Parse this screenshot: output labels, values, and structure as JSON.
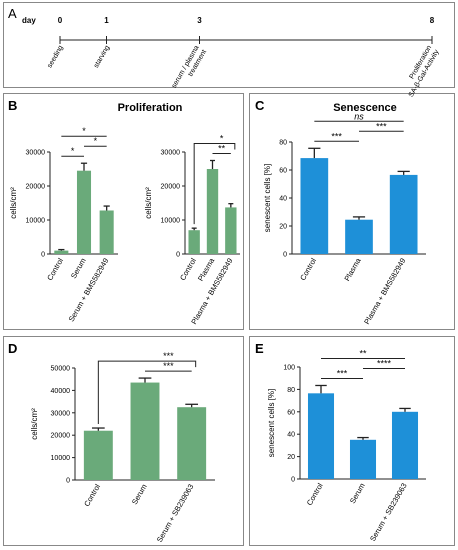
{
  "panel_letters": {
    "a": "A",
    "b": "B",
    "c": "C",
    "d": "D",
    "e": "E"
  },
  "timeline": {
    "day_label": "day",
    "days": [
      0,
      1,
      3,
      8
    ],
    "events": [
      {
        "day": 0,
        "lines": [
          "seeding"
        ]
      },
      {
        "day": 1,
        "lines": [
          "starving"
        ]
      },
      {
        "day": 3,
        "lines": [
          "serum / plasma",
          "treatment"
        ]
      },
      {
        "day": 8,
        "lines": [
          "Proliferation",
          "SA-β-Gal-Activity"
        ]
      }
    ]
  },
  "colors": {
    "green": "#6aaa7a",
    "blue": "#1e90d8",
    "error": "#222222",
    "frame": "#888888"
  },
  "titles": {
    "b": "Proliferation",
    "c": "Senescence"
  },
  "chart_data": [
    {
      "id": "b1",
      "type": "bar",
      "categories": [
        "Control",
        "Serum",
        "Serum + BMS582949"
      ],
      "values": [
        1000,
        24500,
        12800
      ],
      "errors": [
        300,
        2200,
        1300
      ],
      "ylabel": "cells/cm²",
      "ylim": [
        0,
        30000
      ],
      "yticks": [
        0,
        10000,
        20000,
        30000
      ],
      "color": "green",
      "sig": [
        {
          "from": 0,
          "to": 2,
          "label": "*"
        },
        {
          "from": 0,
          "to": 1,
          "label": "*"
        },
        {
          "from": 1,
          "to": 2,
          "label": "*"
        }
      ]
    },
    {
      "id": "b2",
      "type": "bar",
      "categories": [
        "Control",
        "Plasma",
        "Plasma + BMS582949"
      ],
      "values": [
        7000,
        25000,
        13700
      ],
      "errors": [
        600,
        2500,
        1100
      ],
      "ylabel": "cells/cm²",
      "ylim": [
        0,
        30000
      ],
      "yticks": [
        0,
        10000,
        20000,
        30000
      ],
      "color": "green",
      "sig": [
        {
          "from": 0,
          "to": 2,
          "label": "*",
          "bracket": "fork"
        },
        {
          "from": 1,
          "to": 2,
          "label": "**"
        }
      ]
    },
    {
      "id": "c",
      "type": "bar",
      "categories": [
        "Control",
        "Plasma",
        "Plasma + BMS582949"
      ],
      "values": [
        68.5,
        24.5,
        56.5
      ],
      "errors": [
        7,
        2,
        2.5
      ],
      "ylabel": "senescent cells [%]",
      "ylim": [
        0,
        80
      ],
      "yticks": [
        0,
        20,
        40,
        60,
        80
      ],
      "color": "blue",
      "sig": [
        {
          "from": 0,
          "to": 2,
          "label": "ns",
          "italic": true
        },
        {
          "from": 0,
          "to": 1,
          "label": "***"
        },
        {
          "from": 1,
          "to": 2,
          "label": "***"
        }
      ]
    },
    {
      "id": "d",
      "type": "bar",
      "categories": [
        "Control",
        "Serum",
        "Serum + SB239063"
      ],
      "values": [
        22000,
        43500,
        32500
      ],
      "errors": [
        1200,
        2000,
        1300
      ],
      "ylabel": "cells/cm²",
      "ylim": [
        0,
        50000
      ],
      "yticks": [
        0,
        10000,
        20000,
        30000,
        40000,
        50000
      ],
      "color": "green",
      "sig": [
        {
          "from": 0,
          "to": 2,
          "label": "***",
          "bracket": "fork"
        },
        {
          "from": 1,
          "to": 2,
          "label": "***"
        }
      ]
    },
    {
      "id": "e",
      "type": "bar",
      "categories": [
        "Control",
        "Serum",
        "Serum + SB239063"
      ],
      "values": [
        76.5,
        35,
        60
      ],
      "errors": [
        7,
        2,
        3
      ],
      "ylabel": "senescent cells [%]",
      "ylim": [
        0,
        100
      ],
      "yticks": [
        0,
        20,
        40,
        60,
        80,
        100
      ],
      "color": "blue",
      "sig": [
        {
          "from": 0,
          "to": 2,
          "label": "**"
        },
        {
          "from": 0,
          "to": 1,
          "label": "***"
        },
        {
          "from": 1,
          "to": 2,
          "label": "****"
        }
      ]
    }
  ]
}
